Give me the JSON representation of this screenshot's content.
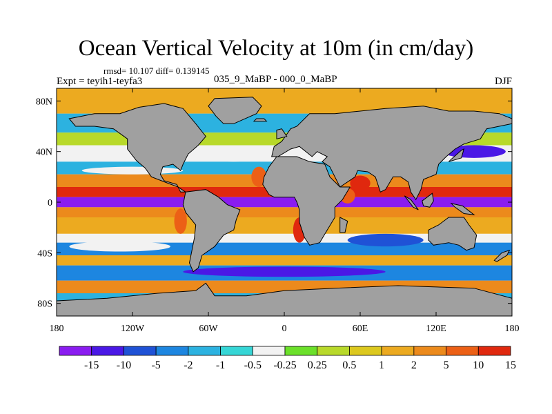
{
  "title": "Ocean Vertical Velocity at 10m (in cm/day)",
  "stats": "rmsd= 10.107  diff= 0.139145",
  "left_label": "Expt = teyih1-teyfa3",
  "center_label": "035_9_MaBP - 000_0_MaBP",
  "right_label": "DJF",
  "colors": {
    "land": "#a0a0a0",
    "frame": "#000000"
  },
  "chart_data": {
    "type": "heatmap",
    "title": "Ocean Vertical Velocity at 10m (in cm/day)",
    "projection": "cylindrical equidistant",
    "xlim": [
      -180,
      180
    ],
    "ylim": [
      -90,
      90
    ],
    "x_ticks": [
      {
        "value": -180,
        "label": "180"
      },
      {
        "value": -120,
        "label": "120W"
      },
      {
        "value": -60,
        "label": "60W"
      },
      {
        "value": 0,
        "label": "0"
      },
      {
        "value": 60,
        "label": "60E"
      },
      {
        "value": 120,
        "label": "120E"
      },
      {
        "value": 180,
        "label": "180"
      }
    ],
    "y_ticks": [
      {
        "value": 80,
        "label": "80N"
      },
      {
        "value": 40,
        "label": "40N"
      },
      {
        "value": 0,
        "label": "0"
      },
      {
        "value": -40,
        "label": "40S"
      },
      {
        "value": -80,
        "label": "80S"
      }
    ],
    "colorbar": {
      "boundaries": [
        "-15",
        "-10",
        "-5",
        "-2",
        "-1",
        "-0.5",
        "-0.25",
        "0.25",
        "0.5",
        "1",
        "2",
        "5",
        "10",
        "15"
      ],
      "colors": [
        "#8a1cf0",
        "#4a18e6",
        "#1f52d6",
        "#1d86e0",
        "#2cb2e0",
        "#36d6d6",
        "#f2f2f2",
        "#6be02a",
        "#b8d92a",
        "#dcc81e",
        "#ecaa20",
        "#ec8a1c",
        "#ec6016",
        "#e0280e"
      ]
    },
    "zonal_bands": [
      {
        "lat": [
          70,
          90
        ],
        "class": 10
      },
      {
        "lat": [
          55,
          70
        ],
        "class": 4
      },
      {
        "lat": [
          45,
          55
        ],
        "class": 8
      },
      {
        "lat": [
          32,
          45
        ],
        "class": 6
      },
      {
        "lat": [
          22,
          32
        ],
        "class": 4
      },
      {
        "lat": [
          12,
          22
        ],
        "class": 11
      },
      {
        "lat": [
          4,
          12
        ],
        "class": 13
      },
      {
        "lat": [
          -4,
          4
        ],
        "class": 0
      },
      {
        "lat": [
          -12,
          -4
        ],
        "class": 11
      },
      {
        "lat": [
          -25,
          -12
        ],
        "class": 10
      },
      {
        "lat": [
          -32,
          -25
        ],
        "class": 6
      },
      {
        "lat": [
          -42,
          -32
        ],
        "class": 3
      },
      {
        "lat": [
          -50,
          -42
        ],
        "class": 10
      },
      {
        "lat": [
          -62,
          -50
        ],
        "class": 3
      },
      {
        "lat": [
          -72,
          -62
        ],
        "class": 11
      },
      {
        "lat": [
          -90,
          -72
        ],
        "class": 4
      }
    ],
    "land_masses": [
      {
        "name": "North America",
        "polygon": [
          [
            -170,
            66
          ],
          [
            -150,
            70
          ],
          [
            -130,
            70
          ],
          [
            -115,
            75
          ],
          [
            -95,
            78
          ],
          [
            -80,
            74
          ],
          [
            -70,
            62
          ],
          [
            -62,
            52
          ],
          [
            -68,
            45
          ],
          [
            -76,
            38
          ],
          [
            -80,
            30
          ],
          [
            -82,
            25
          ],
          [
            -88,
            30
          ],
          [
            -96,
            28
          ],
          [
            -98,
            22
          ],
          [
            -95,
            17
          ],
          [
            -85,
            14
          ],
          [
            -82,
            8
          ],
          [
            -78,
            8
          ],
          [
            -84,
            12
          ],
          [
            -92,
            15
          ],
          [
            -105,
            20
          ],
          [
            -110,
            27
          ],
          [
            -117,
            33
          ],
          [
            -124,
            42
          ],
          [
            -124,
            50
          ],
          [
            -135,
            58
          ],
          [
            -150,
            60
          ],
          [
            -165,
            60
          ]
        ]
      },
      {
        "name": "Greenland",
        "polygon": [
          [
            -55,
            82
          ],
          [
            -25,
            83
          ],
          [
            -18,
            76
          ],
          [
            -22,
            70
          ],
          [
            -40,
            62
          ],
          [
            -48,
            62
          ],
          [
            -54,
            68
          ],
          [
            -60,
            76
          ]
        ]
      },
      {
        "name": "South America",
        "polygon": [
          [
            -78,
            8
          ],
          [
            -62,
            10
          ],
          [
            -52,
            4
          ],
          [
            -45,
            -2
          ],
          [
            -35,
            -6
          ],
          [
            -38,
            -14
          ],
          [
            -40,
            -22
          ],
          [
            -48,
            -26
          ],
          [
            -55,
            -35
          ],
          [
            -65,
            -42
          ],
          [
            -68,
            -52
          ],
          [
            -72,
            -55
          ],
          [
            -75,
            -48
          ],
          [
            -73,
            -38
          ],
          [
            -71,
            -28
          ],
          [
            -70,
            -18
          ],
          [
            -78,
            -8
          ],
          [
            -80,
            -2
          ]
        ]
      },
      {
        "name": "Eurasia",
        "polygon": [
          [
            -10,
            36
          ],
          [
            -8,
            44
          ],
          [
            -2,
            48
          ],
          [
            5,
            58
          ],
          [
            10,
            60
          ],
          [
            20,
            70
          ],
          [
            40,
            70
          ],
          [
            60,
            72
          ],
          [
            80,
            74
          ],
          [
            110,
            76
          ],
          [
            130,
            72
          ],
          [
            150,
            72
          ],
          [
            170,
            70
          ],
          [
            180,
            66
          ],
          [
            180,
            62
          ],
          [
            160,
            58
          ],
          [
            155,
            50
          ],
          [
            142,
            46
          ],
          [
            135,
            42
          ],
          [
            128,
            36
          ],
          [
            122,
            30
          ],
          [
            120,
            22
          ],
          [
            110,
            18
          ],
          [
            108,
            10
          ],
          [
            104,
            2
          ],
          [
            100,
            8
          ],
          [
            98,
            16
          ],
          [
            92,
            20
          ],
          [
            86,
            20
          ],
          [
            80,
            10
          ],
          [
            76,
            8
          ],
          [
            72,
            20
          ],
          [
            66,
            24
          ],
          [
            58,
            25
          ],
          [
            56,
            20
          ],
          [
            44,
            12
          ],
          [
            36,
            28
          ],
          [
            30,
            32
          ],
          [
            34,
            36
          ],
          [
            26,
            40
          ],
          [
            22,
            36
          ],
          [
            12,
            44
          ],
          [
            5,
            42
          ],
          [
            -5,
            36
          ]
        ]
      },
      {
        "name": "Africa",
        "polygon": [
          [
            -16,
            20
          ],
          [
            -17,
            14
          ],
          [
            -12,
            6
          ],
          [
            -8,
            4
          ],
          [
            8,
            4
          ],
          [
            10,
            0
          ],
          [
            12,
            -6
          ],
          [
            12,
            -16
          ],
          [
            16,
            -28
          ],
          [
            20,
            -34
          ],
          [
            28,
            -32
          ],
          [
            34,
            -22
          ],
          [
            40,
            -12
          ],
          [
            40,
            -4
          ],
          [
            46,
            2
          ],
          [
            52,
            12
          ],
          [
            44,
            12
          ],
          [
            36,
            20
          ],
          [
            32,
            30
          ],
          [
            20,
            32
          ],
          [
            10,
            36
          ],
          [
            -6,
            36
          ],
          [
            -12,
            28
          ]
        ]
      },
      {
        "name": "Madagascar",
        "polygon": [
          [
            44,
            -12
          ],
          [
            50,
            -15
          ],
          [
            48,
            -24
          ],
          [
            44,
            -24
          ]
        ]
      },
      {
        "name": "Australia",
        "polygon": [
          [
            114,
            -22
          ],
          [
            122,
            -18
          ],
          [
            130,
            -12
          ],
          [
            136,
            -12
          ],
          [
            142,
            -12
          ],
          [
            146,
            -18
          ],
          [
            152,
            -26
          ],
          [
            150,
            -36
          ],
          [
            144,
            -38
          ],
          [
            138,
            -34
          ],
          [
            130,
            -32
          ],
          [
            118,
            -34
          ],
          [
            114,
            -30
          ]
        ]
      },
      {
        "name": "Antarctica",
        "polygon": [
          [
            -180,
            -90
          ],
          [
            180,
            -90
          ],
          [
            180,
            -76
          ],
          [
            150,
            -68
          ],
          [
            90,
            -66
          ],
          [
            40,
            -68
          ],
          [
            0,
            -70
          ],
          [
            -30,
            -74
          ],
          [
            -55,
            -74
          ],
          [
            -62,
            -64
          ],
          [
            -70,
            -70
          ],
          [
            -100,
            -72
          ],
          [
            -140,
            -76
          ],
          [
            -180,
            -78
          ]
        ]
      },
      {
        "name": "Borneo",
        "polygon": [
          [
            109,
            1
          ],
          [
            117,
            7
          ],
          [
            118,
            1
          ],
          [
            115,
            -4
          ],
          [
            110,
            -3
          ]
        ]
      },
      {
        "name": "Sumatra",
        "polygon": [
          [
            95,
            5
          ],
          [
            100,
            2
          ],
          [
            106,
            -6
          ],
          [
            102,
            -4
          ]
        ]
      },
      {
        "name": "New Guinea",
        "polygon": [
          [
            132,
            -1
          ],
          [
            141,
            -3
          ],
          [
            150,
            -10
          ],
          [
            142,
            -9
          ],
          [
            135,
            -4
          ]
        ]
      },
      {
        "name": "Japan",
        "polygon": [
          [
            130,
            32
          ],
          [
            140,
            35
          ],
          [
            142,
            42
          ],
          [
            140,
            41
          ],
          [
            132,
            34
          ]
        ]
      },
      {
        "name": "United Kingdom",
        "polygon": [
          [
            -6,
            50
          ],
          [
            2,
            52
          ],
          [
            -2,
            58
          ],
          [
            -6,
            57
          ]
        ]
      },
      {
        "name": "Iceland",
        "polygon": [
          [
            -24,
            64
          ],
          [
            -14,
            64
          ],
          [
            -16,
            66
          ],
          [
            -22,
            66
          ]
        ]
      },
      {
        "name": "New Zealand",
        "polygon": [
          [
            166,
            -46
          ],
          [
            172,
            -40
          ],
          [
            178,
            -38
          ],
          [
            176,
            -42
          ],
          [
            168,
            -47
          ]
        ]
      }
    ],
    "anomalies": [
      {
        "name": "Peru upwelling",
        "lon": -82,
        "lat": -15,
        "rx": 5,
        "ry": 10,
        "class": 12
      },
      {
        "name": "Benguela upwelling",
        "lon": 12,
        "lat": -22,
        "rx": 5,
        "ry": 10,
        "class": 13
      },
      {
        "name": "Canary upwelling",
        "lon": -20,
        "lat": 20,
        "rx": 6,
        "ry": 8,
        "class": 12
      },
      {
        "name": "Arabian Sea",
        "lon": 60,
        "lat": 15,
        "rx": 8,
        "ry": 6,
        "class": 13
      },
      {
        "name": "Somali coast",
        "lon": 50,
        "lat": 5,
        "rx": 6,
        "ry": 6,
        "class": 12
      },
      {
        "name": "North Pacific west",
        "lon": 150,
        "lat": 40,
        "rx": 25,
        "ry": 5,
        "class": 1
      },
      {
        "name": "North Atlantic gyre",
        "lon": -40,
        "lat": 38,
        "rx": 20,
        "ry": 6,
        "class": 6
      },
      {
        "name": "Tropical North Pacific",
        "lon": -120,
        "lat": 25,
        "rx": 40,
        "ry": 3,
        "class": 6
      },
      {
        "name": "Southern Ocean",
        "lon": 0,
        "lat": -55,
        "rx": 80,
        "ry": 4,
        "class": 1
      },
      {
        "name": "Indian Ocean south",
        "lon": 80,
        "lat": -30,
        "rx": 30,
        "ry": 5,
        "class": 2
      },
      {
        "name": "South Pacific",
        "lon": -130,
        "lat": -35,
        "rx": 40,
        "ry": 4,
        "class": 6
      }
    ]
  }
}
